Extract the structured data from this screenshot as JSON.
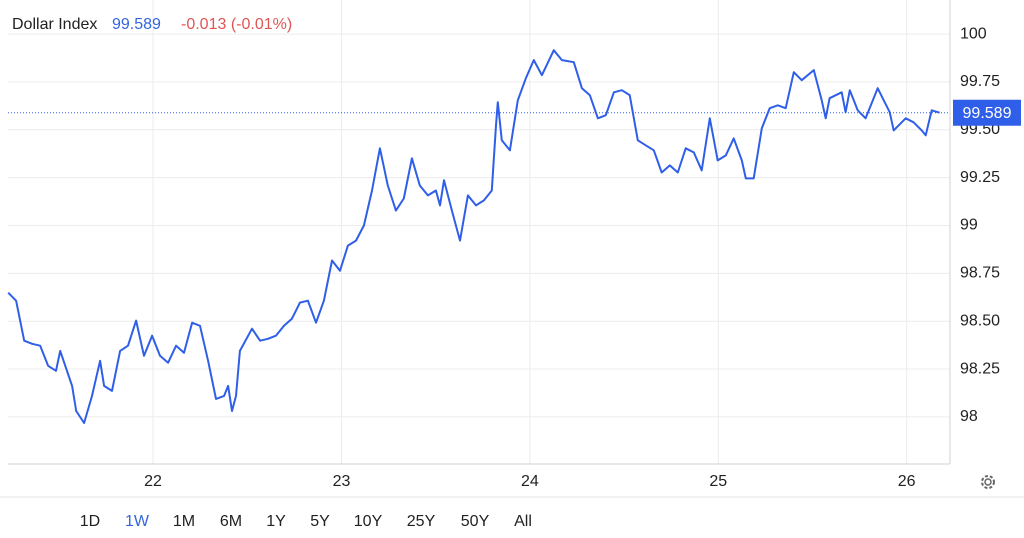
{
  "header": {
    "title": "Dollar Index",
    "change": "-0.013 (-0.01%)"
  },
  "chart_data": {
    "type": "line",
    "x": [
      21.231,
      21.273,
      21.316,
      21.358,
      21.401,
      21.443,
      21.485,
      21.507,
      21.57,
      21.592,
      21.634,
      21.676,
      21.719,
      21.74,
      21.782,
      21.825,
      21.867,
      21.91,
      21.952,
      21.995,
      22.037,
      22.08,
      22.122,
      22.164,
      22.207,
      22.249,
      22.292,
      22.334,
      22.377,
      22.398,
      22.419,
      22.44,
      22.461,
      22.525,
      22.568,
      22.61,
      22.652,
      22.695,
      22.737,
      22.78,
      22.822,
      22.865,
      22.907,
      22.95,
      22.992,
      23.034,
      23.077,
      23.119,
      23.162,
      23.204,
      23.246,
      23.289,
      23.331,
      23.374,
      23.416,
      23.459,
      23.501,
      23.523,
      23.544,
      23.586,
      23.629,
      23.671,
      23.714,
      23.756,
      23.798,
      23.82,
      23.83,
      23.851,
      23.894,
      23.936,
      23.979,
      24.021,
      24.064,
      24.127,
      24.17,
      24.233,
      24.276,
      24.318,
      24.361,
      24.403,
      24.446,
      24.488,
      24.53,
      24.573,
      24.615,
      24.658,
      24.7,
      24.743,
      24.785,
      24.827,
      24.87,
      24.912,
      24.955,
      24.997,
      25.04,
      25.082,
      25.125,
      25.146,
      25.188,
      25.231,
      25.273,
      25.316,
      25.358,
      25.401,
      25.443,
      25.507,
      25.549,
      25.57,
      25.591,
      25.655,
      25.676,
      25.698,
      25.74,
      25.782,
      25.846,
      25.91,
      25.931,
      25.995,
      26.037,
      26.08,
      26.101,
      26.133,
      26.175
    ],
    "series": [
      {
        "color": "#2f5fe8",
        "values": [
          98.649,
          98.607,
          98.398,
          98.382,
          98.372,
          98.267,
          98.241,
          98.345,
          98.162,
          98.031,
          97.968,
          98.11,
          98.293,
          98.162,
          98.136,
          98.345,
          98.372,
          98.503,
          98.319,
          98.424,
          98.319,
          98.283,
          98.372,
          98.335,
          98.492,
          98.476,
          98.293,
          98.094,
          98.11,
          98.162,
          98.031,
          98.11,
          98.345,
          98.461,
          98.398,
          98.408,
          98.424,
          98.476,
          98.513,
          98.597,
          98.607,
          98.492,
          98.607,
          98.817,
          98.764,
          98.895,
          98.921,
          99.0,
          99.183,
          99.403,
          99.209,
          99.078,
          99.141,
          99.351,
          99.209,
          99.157,
          99.183,
          99.105,
          99.236,
          99.078,
          98.921,
          99.157,
          99.105,
          99.131,
          99.183,
          99.524,
          99.644,
          99.445,
          99.393,
          99.654,
          99.77,
          99.864,
          99.785,
          99.916,
          99.864,
          99.853,
          99.717,
          99.681,
          99.56,
          99.576,
          99.696,
          99.707,
          99.681,
          99.445,
          99.419,
          99.393,
          99.277,
          99.314,
          99.277,
          99.403,
          99.382,
          99.288,
          99.56,
          99.34,
          99.366,
          99.455,
          99.34,
          99.246,
          99.246,
          99.508,
          99.613,
          99.628,
          99.613,
          99.801,
          99.759,
          99.812,
          99.654,
          99.56,
          99.665,
          99.696,
          99.592,
          99.707,
          99.602,
          99.56,
          99.717,
          99.592,
          99.497,
          99.56,
          99.539,
          99.497,
          99.471,
          99.602,
          99.589
        ]
      }
    ],
    "last_price": 99.589,
    "xlim": [
      21.23,
      26.23
    ],
    "xticks": [
      22,
      23,
      24,
      25,
      26
    ],
    "ylim": [
      97.754,
      100.178
    ],
    "yticks": [
      98,
      98.25,
      {
        "value": 98.5,
        "label": "98.50"
      },
      98.75,
      99,
      99.25,
      {
        "value": 99.5,
        "label": "99.50"
      },
      99.75,
      100
    ],
    "grid": true
  },
  "ranges": [
    "1D",
    "1W",
    "1M",
    "6M",
    "1Y",
    "5Y",
    "10Y",
    "25Y",
    "50Y",
    "All"
  ],
  "selected_range": 1
}
